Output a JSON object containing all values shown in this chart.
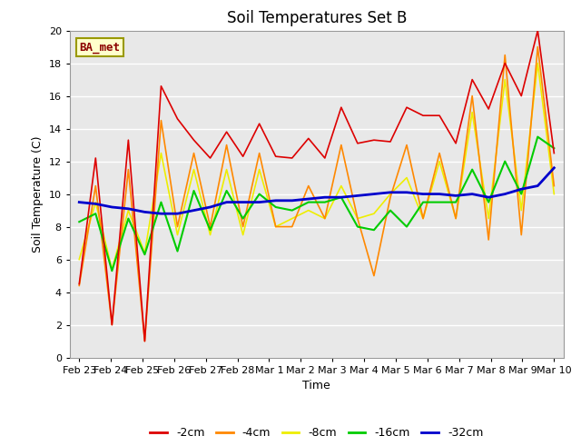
{
  "title": "Soil Temperatures Set B",
  "xlabel": "Time",
  "ylabel": "Soil Temperature (C)",
  "annotation": "BA_met",
  "ylim": [
    0,
    20
  ],
  "background_color": "#e8e8e8",
  "grid_color": "#ffffff",
  "series": {
    "-2cm": {
      "color": "#dd0000",
      "lw": 1.2
    },
    "-4cm": {
      "color": "#ff8800",
      "lw": 1.2
    },
    "-8cm": {
      "color": "#eeee00",
      "lw": 1.2
    },
    "-16cm": {
      "color": "#00cc00",
      "lw": 1.5
    },
    "-32cm": {
      "color": "#0000cc",
      "lw": 2.0
    }
  },
  "xtick_labels": [
    "Feb 23",
    "Feb 24",
    "Feb 25",
    "Feb 26",
    "Feb 27",
    "Feb 28",
    "Mar 1",
    "Mar 2",
    "Mar 3",
    "Mar 4",
    "Mar 5",
    "Mar 6",
    "Mar 7",
    "Mar 8",
    "Mar 9",
    "Mar 10"
  ],
  "data_2cm": [
    4.5,
    12.2,
    2.0,
    13.3,
    1.0,
    16.6,
    14.6,
    13.3,
    12.2,
    13.8,
    12.3,
    14.3,
    12.3,
    12.2,
    13.4,
    12.2,
    15.3,
    13.1,
    13.3,
    13.2,
    15.3,
    14.8,
    14.8,
    13.1,
    17.0,
    15.2,
    18.0,
    16.0,
    20.0,
    12.5
  ],
  "data_4cm": [
    4.4,
    10.5,
    2.0,
    11.5,
    1.0,
    14.5,
    8.0,
    12.5,
    8.0,
    13.0,
    8.0,
    12.5,
    8.0,
    8.0,
    10.5,
    8.5,
    13.0,
    8.5,
    5.0,
    9.8,
    13.0,
    8.5,
    12.5,
    8.5,
    16.0,
    7.2,
    18.5,
    7.5,
    19.0,
    10.5
  ],
  "data_8cm": [
    6.0,
    9.5,
    5.4,
    9.0,
    6.4,
    12.5,
    7.5,
    11.5,
    7.5,
    11.5,
    7.5,
    11.5,
    8.0,
    8.5,
    9.0,
    8.5,
    10.5,
    8.5,
    8.8,
    10.0,
    11.0,
    8.5,
    12.0,
    8.5,
    15.0,
    8.5,
    17.0,
    9.0,
    18.0,
    10.0
  ],
  "data_16cm": [
    8.3,
    8.8,
    5.3,
    8.5,
    6.3,
    9.5,
    6.5,
    10.2,
    7.8,
    10.2,
    8.5,
    10.0,
    9.2,
    9.0,
    9.5,
    9.5,
    9.8,
    8.0,
    7.8,
    9.0,
    8.0,
    9.5,
    9.5,
    9.5,
    11.5,
    9.5,
    12.0,
    10.0,
    13.5,
    12.8
  ],
  "data_32cm": [
    9.5,
    9.4,
    9.2,
    9.1,
    8.9,
    8.8,
    8.8,
    9.0,
    9.2,
    9.5,
    9.5,
    9.5,
    9.6,
    9.6,
    9.7,
    9.8,
    9.8,
    9.9,
    10.0,
    10.1,
    10.1,
    10.0,
    10.0,
    9.9,
    10.0,
    9.8,
    10.0,
    10.3,
    10.5,
    11.6
  ]
}
